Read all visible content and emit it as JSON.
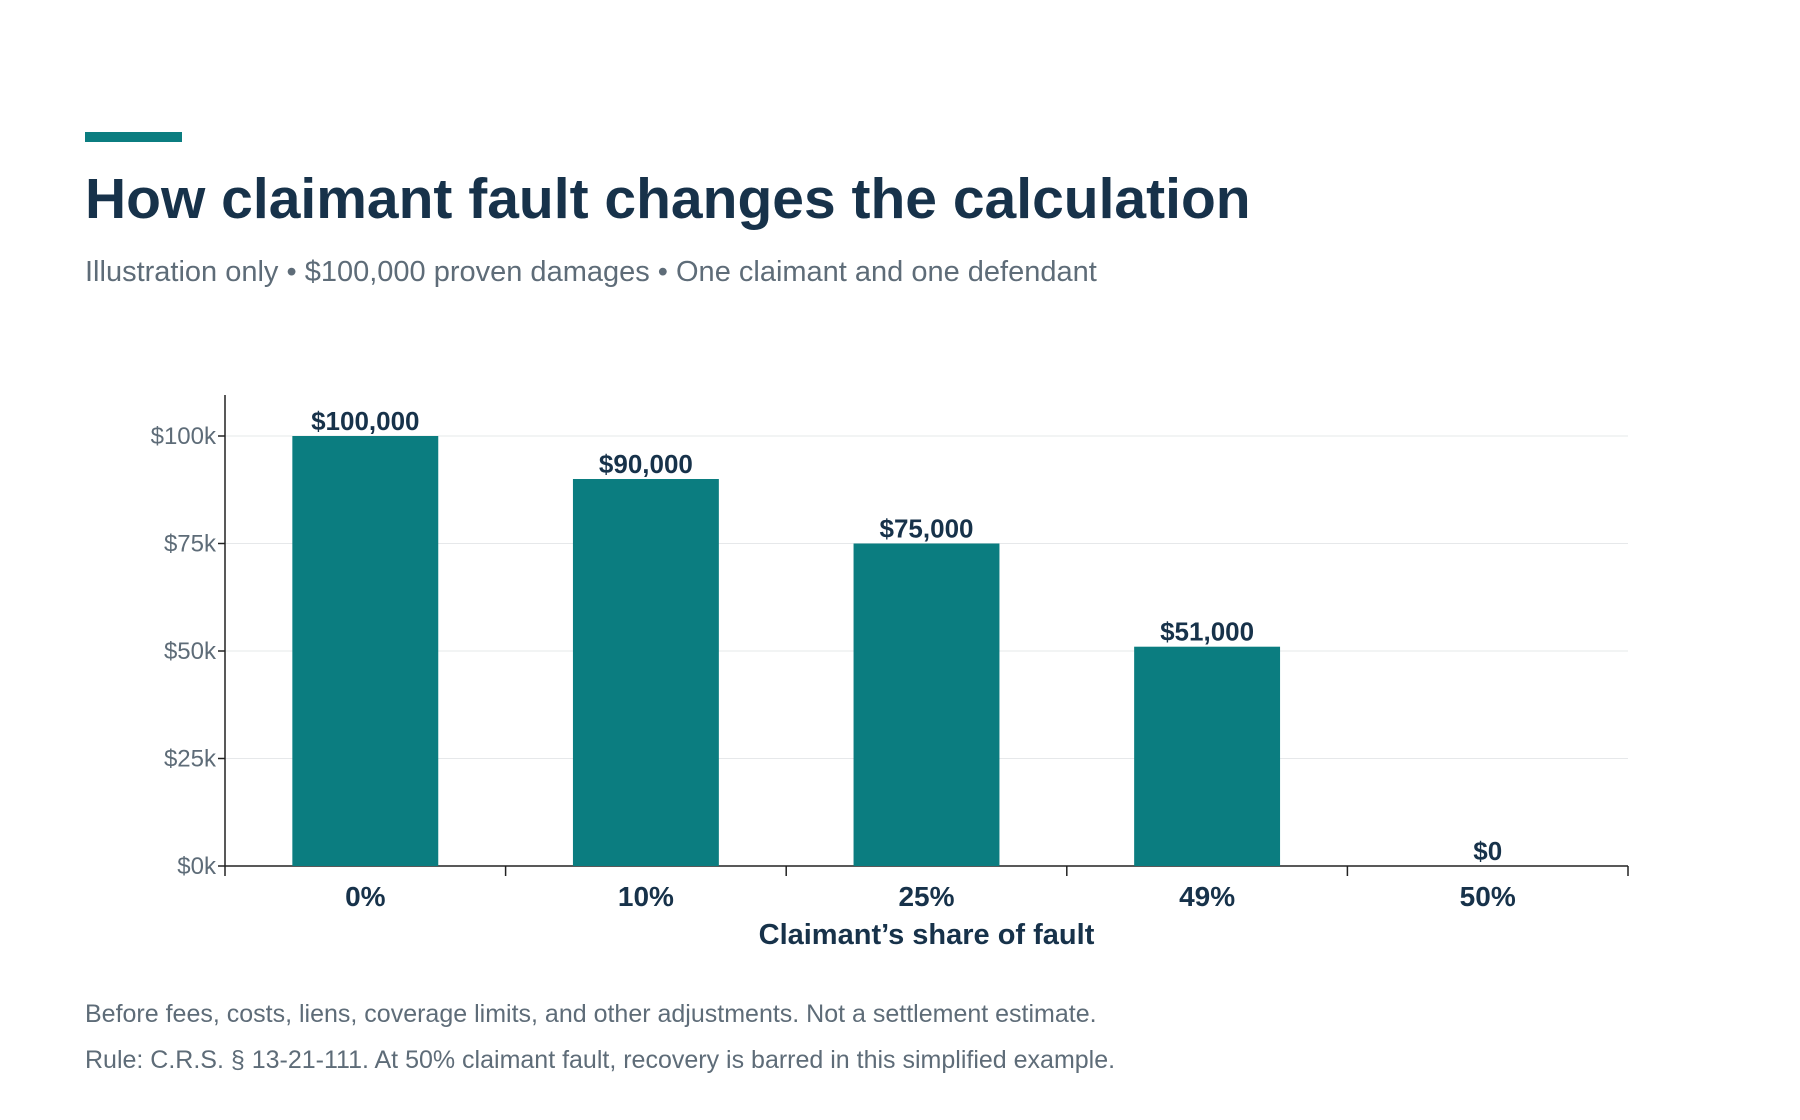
{
  "header": {
    "title": "How claimant fault changes the calculation",
    "subtitle": "Illustration only • $100,000 proven damages • One claimant and one defendant"
  },
  "chart_data": {
    "type": "bar",
    "categories": [
      "0%",
      "10%",
      "25%",
      "49%",
      "50%"
    ],
    "values": [
      100000,
      90000,
      75000,
      51000,
      0
    ],
    "data_labels": [
      "$100,000",
      "$90,000",
      "$75,000",
      "$51,000",
      "$0"
    ],
    "xlabel": "Claimant’s share of fault",
    "ylabel": "",
    "ylim": [
      0,
      110000
    ],
    "yticks": [
      0,
      25000,
      50000,
      75000,
      100000
    ],
    "ytick_labels": [
      "$0k",
      "$25k",
      "$50k",
      "$75k",
      "$100k"
    ],
    "grid": true,
    "bar_color": "#0b7d80"
  },
  "footer": {
    "note_1": "Before fees, costs, liens, coverage limits, and other adjustments. Not a settlement estimate.",
    "note_2": "Rule: C.R.S. § 13-21-111. At 50% claimant fault, recovery is barred in this simplified example."
  },
  "colors": {
    "accent": "#0b7d80",
    "title": "#17324a",
    "muted": "#5e6c78"
  }
}
